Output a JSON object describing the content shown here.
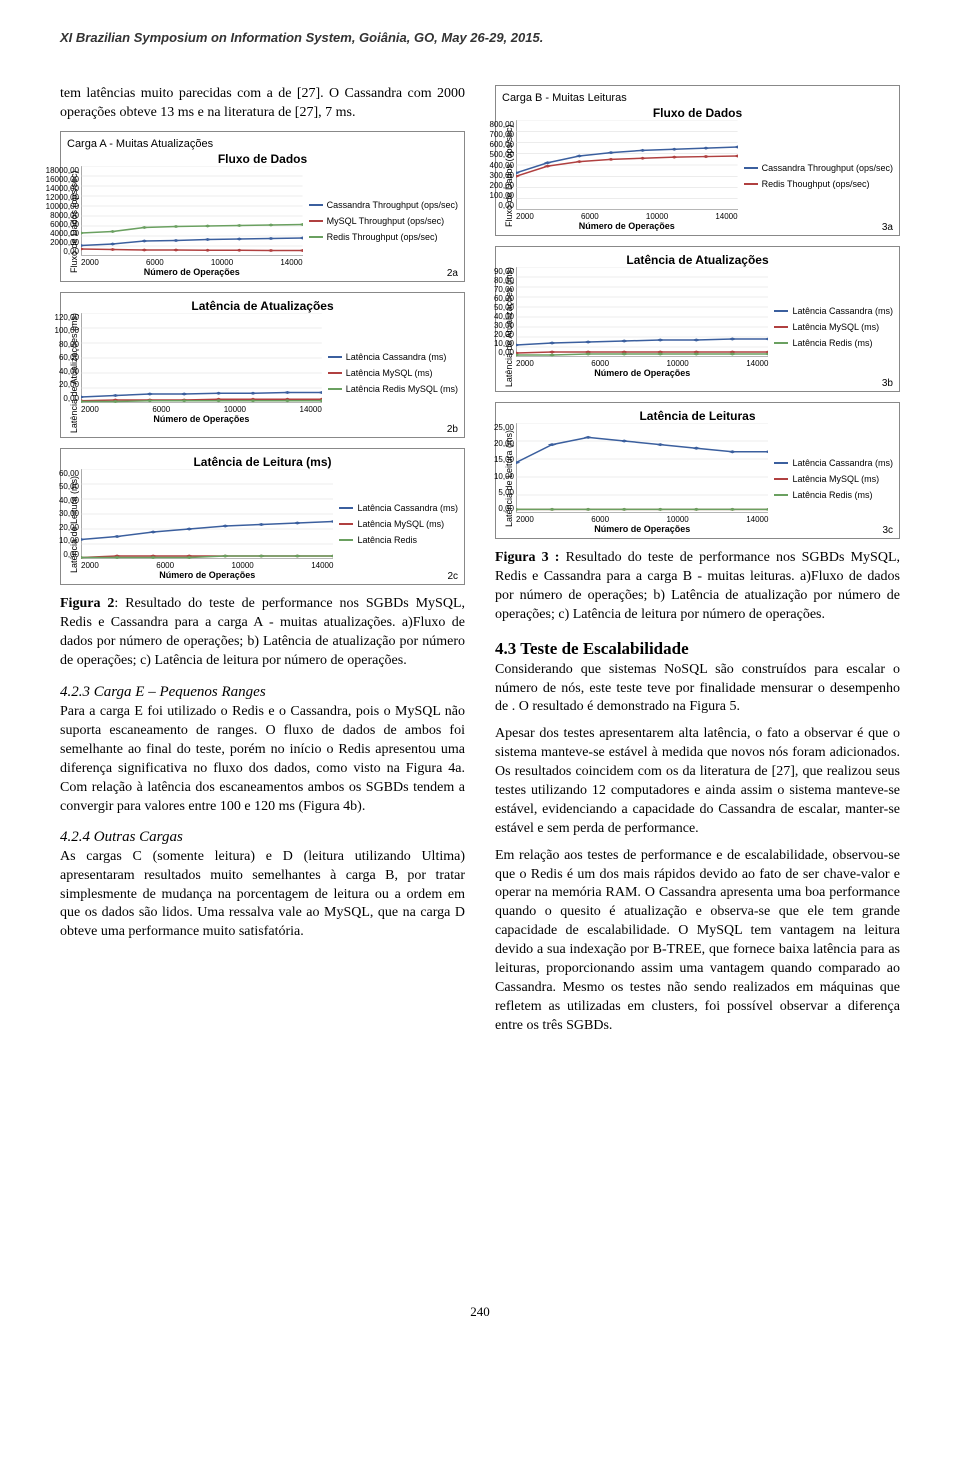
{
  "header": "XI Brazilian Symposium on Information System, Goiânia, GO, May 26-29, 2015.",
  "page_number": 240,
  "col_left": {
    "intro": "tem latências muito parecidas com a de [27]. O Cassandra com 2000 operações obteve 13 ms e na literatura de [27], 7 ms.",
    "fig2_caption_bold": "Figura 2",
    "fig2_caption_rest": ": Resultado do teste de performance nos SGBDs MySQL, Redis e Cassandra para a carga A - muitas atualizações. a)Fluxo de dados por número de operações; b) Latência de atualização por número de operações; c) Latência de leitura por número de operações.",
    "s423_title": "4.2.3  Carga E – Pequenos Ranges",
    "s423_body": "Para a carga E foi utilizado o Redis e o Cassandra, pois o MySQL não suporta escaneamento de ranges. O fluxo de dados de ambos foi semelhante ao final do teste, porém no início o Redis apresentou uma diferença significativa no fluxo dos dados, como visto na Figura 4a. Com relação à latência dos escaneamentos ambos os SGBDs tendem a convergir para valores entre 100 e 120 ms (Figura 4b).",
    "s424_title": "4.2.4  Outras Cargas",
    "s424_body": "As cargas C (somente leitura) e D (leitura utilizando Ultima) apresentaram resultados muito semelhantes à carga B, por tratar simplesmente de mudança na porcentagem de leitura ou a ordem em que os dados são lidos. Uma ressalva vale ao MySQL, que na carga D obteve uma performance muito satisfatória."
  },
  "col_right": {
    "fig3_caption_bold": "Figura 3 :",
    "fig3_caption_rest": " Resultado do teste de performance nos SGBDs MySQL, Redis e Cassandra para a carga B - muitas leituras. a)Fluxo de dados por número de operações; b) Latência de atualização por número de operações; c) Latência de leitura por número de operações.",
    "s43_title": "4.3  Teste de Escalabilidade",
    "s43_p1": "Considerando que sistemas NoSQL são construídos para escalar o número de nós, este teste teve por finalidade mensurar o desempenho de . O resultado é demonstrado na Figura 5.",
    "s43_p2": "Apesar dos testes apresentarem alta latência, o fato a observar é que o sistema manteve-se estável à medida que novos nós foram adicionados. Os resultados coincidem com os da literatura de [27], que realizou seus testes utilizando 12 computadores e ainda assim o sistema manteve-se estável, evidenciando a capacidade do Cassandra de escalar, manter-se estável e sem perda de performance.",
    "s43_p3": "Em relação aos testes de performance e de escalabilidade, observou-se que o Redis é um dos mais rápidos devido ao fato de ser chave-valor e operar na memória RAM. O Cassandra apresenta uma boa performance quando o quesito é atualização e observa-se que ele tem grande capacidade de escalabilidade. O MySQL tem vantagem na leitura devido a sua indexação por B-TREE, que fornece baixa latência para as leituras, proporcionando assim uma vantagem quando comparado ao Cassandra. Mesmo os testes não sendo realizados em máquinas que refletem as utilizadas em clusters, foi possível observar a diferença entre os três SGBDs."
  },
  "colors": {
    "cassandra": "#3b5f9e",
    "mysql": "#b04040",
    "redis": "#6aa060",
    "border": "#888888",
    "grid": "#d9d9d9"
  },
  "x_categories": [
    "2000",
    "6000",
    "10000",
    "14000"
  ],
  "x_axis_label": "Número de Operações",
  "chartA": {
    "suptitle": "Carga A - Muitas Atualizações",
    "a": {
      "title": "Fluxo de Dados",
      "ylabel": "Fluxo de Dados (ops/sec)",
      "yticks": [
        "18000,00",
        "16000,00",
        "14000,00",
        "12000,00",
        "10000,00",
        "8000,00",
        "6000,00",
        "4000,00",
        "2000,00",
        "0,00"
      ],
      "ylim": [
        0,
        18000
      ],
      "sub": "2a",
      "series": [
        {
          "name": "Cassandra Throughput (ops/sec)",
          "color": "#3b5f9e",
          "values": [
            2100,
            2400,
            3000,
            3100,
            3300,
            3400,
            3500,
            3600
          ]
        },
        {
          "name": "MySQL Throughput (ops/sec)",
          "color": "#b04040",
          "values": [
            1400,
            1300,
            1200,
            1200,
            1150,
            1150,
            1100,
            1100
          ]
        },
        {
          "name": "Redis Throughput (ops/sec)",
          "color": "#6aa060",
          "values": [
            4600,
            4900,
            5700,
            5900,
            6000,
            6100,
            6200,
            6300
          ]
        }
      ]
    },
    "b": {
      "title": "Latência de Atualizações",
      "ylabel": "Latência de Atualizações (ms)",
      "yticks": [
        "120,00",
        "100,00",
        "80,00",
        "60,00",
        "40,00",
        "20,00",
        "0,00"
      ],
      "ylim": [
        0,
        120
      ],
      "sub": "2b",
      "series": [
        {
          "name": "Latência Cassandra (ms)",
          "color": "#3b5f9e",
          "values": [
            8,
            10,
            12,
            12,
            13,
            13,
            14,
            14
          ]
        },
        {
          "name": "Latência MySQL (ms)",
          "color": "#b04040",
          "values": [
            3,
            4,
            4,
            4,
            5,
            5,
            5,
            5
          ]
        },
        {
          "name": "Latência Redis MySQL (ms)",
          "color": "#6aa060",
          "values": [
            2,
            2,
            3,
            3,
            3,
            3,
            3,
            3
          ]
        }
      ]
    },
    "c": {
      "title": "Latência de Leitura (ms)",
      "ylabel": "Latência de Leitura (ms)",
      "yticks": [
        "60,00",
        "50,00",
        "40,00",
        "30,00",
        "20,00",
        "10,00",
        "0,00"
      ],
      "ylim": [
        0,
        60
      ],
      "sub": "2c",
      "series": [
        {
          "name": "Latência Cassandra (ms)",
          "color": "#3b5f9e",
          "values": [
            13,
            15,
            18,
            20,
            22,
            23,
            24,
            25
          ]
        },
        {
          "name": "Latência MySQL (ms)",
          "color": "#b04040",
          "values": [
            1,
            2,
            2,
            2,
            2,
            2,
            2,
            2
          ]
        },
        {
          "name": "Latência Redis",
          "color": "#6aa060",
          "values": [
            1,
            1,
            1,
            1,
            2,
            2,
            2,
            2
          ]
        }
      ]
    }
  },
  "chartB": {
    "suptitle": "Carga B - Muitas Leituras",
    "a": {
      "title": "Fluxo de Dados",
      "ylabel": "Fluxo de Dados (ops/sec)",
      "yticks": [
        "800,00",
        "700,00",
        "600,00",
        "500,00",
        "400,00",
        "300,00",
        "200,00",
        "100,00",
        "0,00"
      ],
      "ylim": [
        0,
        800
      ],
      "sub": "3a",
      "series": [
        {
          "name": "Cassandra Throughput (ops/sec)",
          "color": "#3b5f9e",
          "values": [
            330,
            420,
            480,
            510,
            530,
            540,
            550,
            560
          ]
        },
        {
          "name": "Redis Thoughput (ops/sec)",
          "color": "#b04040",
          "values": [
            300,
            390,
            430,
            450,
            460,
            470,
            475,
            480
          ]
        }
      ]
    },
    "b": {
      "title": "Latência de Atualizações",
      "ylabel": "Latência de Atualizações (ms)",
      "yticks": [
        "90,00",
        "80,00",
        "70,00",
        "60,00",
        "50,00",
        "40,00",
        "30,00",
        "20,00",
        "10,00",
        "0,00"
      ],
      "ylim": [
        0,
        90
      ],
      "sub": "3b",
      "series": [
        {
          "name": "Latência Cassandra (ms)",
          "color": "#3b5f9e",
          "values": [
            12,
            14,
            15,
            16,
            17,
            17,
            18,
            18
          ]
        },
        {
          "name": "Latência MySQL (ms)",
          "color": "#b04040",
          "values": [
            4,
            5,
            5,
            5,
            5,
            5,
            5,
            5
          ]
        },
        {
          "name": "Latência Redis (ms)",
          "color": "#6aa060",
          "values": [
            2,
            2,
            3,
            3,
            3,
            3,
            3,
            3
          ]
        }
      ]
    },
    "c": {
      "title": "Latência de Leituras",
      "ylabel": "Latência de Leitura (ms)",
      "yticks": [
        "25,00",
        "20,00",
        "15,00",
        "10,00",
        "5,00",
        "0,00"
      ],
      "ylim": [
        0,
        25
      ],
      "sub": "3c",
      "series": [
        {
          "name": "Latência Cassandra (ms)",
          "color": "#3b5f9e",
          "values": [
            14,
            19,
            21,
            20,
            19,
            18,
            17,
            17
          ]
        },
        {
          "name": "Latência MySQL (ms)",
          "color": "#b04040",
          "values": [
            1,
            1,
            1,
            1,
            1,
            1,
            1,
            1
          ]
        },
        {
          "name": "Latência Redis (ms)",
          "color": "#6aa060",
          "values": [
            1,
            1,
            1,
            1,
            1,
            1,
            1,
            1
          ]
        }
      ]
    }
  }
}
